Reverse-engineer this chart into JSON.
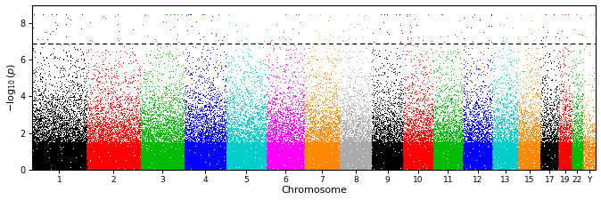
{
  "chromosomes": [
    "1",
    "2",
    "3",
    "4",
    "5",
    "6",
    "7",
    "8",
    "9",
    "10",
    "11",
    "12",
    "13",
    "15",
    "17",
    "19",
    "22",
    "Y"
  ],
  "chr_sizes": [
    249250621,
    243199373,
    198022430,
    191154276,
    180915260,
    171115067,
    159138663,
    146364022,
    141213431,
    135534747,
    135006516,
    133851895,
    115169878,
    102531392,
    81195210,
    59128983,
    51304566,
    59373566
  ],
  "chr_colors": [
    "#000000",
    "#FF0000",
    "#00BB00",
    "#0000FF",
    "#00CCCC",
    "#FF00FF",
    "#FF8800",
    "#AAAAAA",
    "#000000",
    "#FF0000",
    "#00BB00",
    "#0000FF",
    "#00CCCC",
    "#FF8800",
    "#000000",
    "#FF0000",
    "#00BB00",
    "#FF8800"
  ],
  "n_points_per_chr": [
    12000,
    10000,
    8500,
    8000,
    7500,
    7000,
    6500,
    6000,
    5800,
    5500,
    5500,
    5200,
    4500,
    3800,
    3200,
    2500,
    2000,
    1000
  ],
  "ylim": [
    0,
    9
  ],
  "yticks": [
    0,
    2,
    4,
    6,
    8
  ],
  "significance_line": 6.9,
  "xlabel": "Chromosome",
  "ylabel": "$-\\log_{10}(p)$",
  "background_color": "#ffffff",
  "point_size": 0.5,
  "seed": 12345
}
